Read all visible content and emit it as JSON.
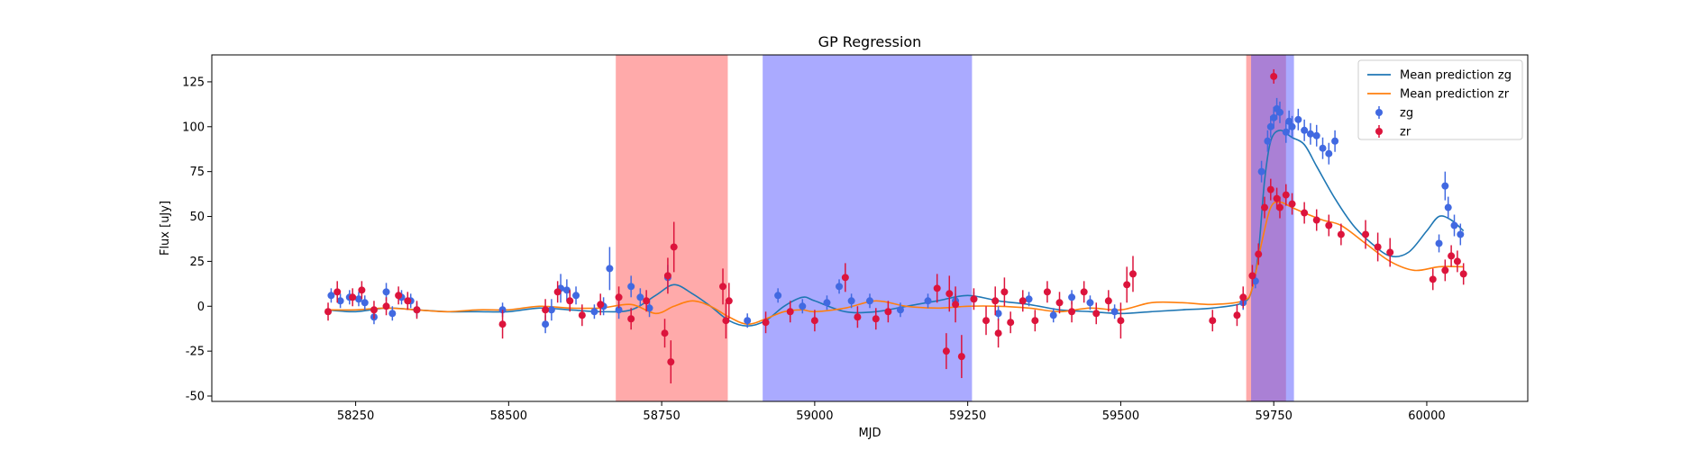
{
  "chart_data": {
    "type": "scatter",
    "title": "GP Regression",
    "xlabel": "MJD",
    "ylabel": "Flux [uJy]",
    "xlim": [
      58015,
      60165
    ],
    "ylim": [
      -53,
      140
    ],
    "xticks": [
      58250,
      58500,
      58750,
      59000,
      59250,
      59500,
      59750,
      60000
    ],
    "yticks": [
      -50,
      -25,
      0,
      25,
      50,
      75,
      100,
      125
    ],
    "legend_position": "top-right",
    "shaded_regions": [
      {
        "x0": 58675,
        "x1": 58858,
        "color": "#ff5555",
        "opacity": 0.5
      },
      {
        "x0": 58915,
        "x1": 59257,
        "color": "#5555ff",
        "opacity": 0.5
      },
      {
        "x0": 59705,
        "x1": 59770,
        "color": "#ff5555",
        "opacity": 0.5
      },
      {
        "x0": 59713,
        "x1": 59783,
        "color": "#5555ff",
        "opacity": 0.5
      }
    ],
    "series": [
      {
        "name": "Mean prediction zg",
        "kind": "line",
        "color": "#1f77b4",
        "x": [
          58200,
          58250,
          58300,
          58350,
          58400,
          58450,
          58500,
          58550,
          58600,
          58650,
          58700,
          58740,
          58770,
          58800,
          58830,
          58860,
          58890,
          58920,
          58950,
          58980,
          59000,
          59050,
          59100,
          59150,
          59200,
          59250,
          59300,
          59350,
          59400,
          59450,
          59500,
          59550,
          59600,
          59650,
          59700,
          59715,
          59725,
          59735,
          59745,
          59760,
          59780,
          59800,
          59820,
          59850,
          59880,
          59910,
          59940,
          59970,
          60000,
          60020,
          60040,
          60060
        ],
        "y": [
          -2,
          -3,
          -1,
          -2,
          -3,
          -3,
          -3,
          -1,
          -2,
          -3,
          -2,
          6,
          12,
          7,
          0,
          -8,
          -11,
          -8,
          0,
          5,
          3,
          -3,
          -3,
          0,
          3,
          6,
          3,
          1,
          -2,
          -3,
          -4,
          -3,
          -2,
          -1,
          2,
          10,
          30,
          70,
          92,
          98,
          94,
          90,
          78,
          60,
          45,
          35,
          28,
          30,
          42,
          50,
          48,
          42
        ]
      },
      {
        "name": "Mean prediction zr",
        "kind": "line",
        "color": "#ff7f0e",
        "x": [
          58200,
          58250,
          58300,
          58350,
          58400,
          58450,
          58500,
          58550,
          58600,
          58650,
          58700,
          58740,
          58770,
          58800,
          58830,
          58860,
          58890,
          58920,
          58950,
          58980,
          59000,
          59050,
          59100,
          59150,
          59200,
          59250,
          59300,
          59350,
          59400,
          59450,
          59500,
          59550,
          59600,
          59650,
          59700,
          59715,
          59730,
          59745,
          59760,
          59780,
          59800,
          59830,
          59860,
          59900,
          59940,
          59980,
          60020,
          60060
        ],
        "y": [
          -2,
          -2,
          -1,
          -2,
          -3,
          -2,
          -2,
          0,
          -1,
          -1,
          1,
          -4,
          0,
          3,
          0,
          -6,
          -10,
          -7,
          -3,
          -2,
          -3,
          -1,
          3,
          0,
          -1,
          0,
          0,
          -1,
          -3,
          -1,
          -2,
          2,
          2,
          1,
          3,
          10,
          35,
          55,
          58,
          55,
          52,
          48,
          45,
          35,
          25,
          20,
          22,
          22
        ]
      },
      {
        "name": "zg",
        "kind": "errorbar",
        "color": "#4169e1",
        "x": [
          58210,
          58225,
          58240,
          58255,
          58265,
          58280,
          58300,
          58310,
          58325,
          58340,
          58350,
          58490,
          58560,
          58570,
          58585,
          58595,
          58610,
          58640,
          58655,
          58665,
          58680,
          58700,
          58715,
          58730,
          58760,
          58890,
          58940,
          58980,
          59020,
          59040,
          59060,
          59090,
          59140,
          59185,
          59230,
          59260,
          59300,
          59350,
          59390,
          59420,
          59450,
          59490,
          59700,
          59720,
          59730,
          59740,
          59745,
          59750,
          59755,
          59760,
          59770,
          59775,
          59780,
          59790,
          59800,
          59810,
          59820,
          59830,
          59840,
          59850,
          60020,
          60030,
          60035,
          60045,
          60055
        ],
        "y": [
          6,
          3,
          5,
          4,
          2,
          -6,
          8,
          -4,
          5,
          3,
          -2,
          -2,
          -10,
          -2,
          10,
          9,
          6,
          -3,
          0,
          21,
          -2,
          11,
          5,
          -1,
          16,
          -8,
          6,
          0,
          2,
          11,
          3,
          3,
          -2,
          3,
          3,
          4,
          -4,
          4,
          -5,
          5,
          2,
          -3,
          2,
          14,
          75,
          92,
          100,
          105,
          110,
          108,
          97,
          103,
          100,
          104,
          98,
          96,
          95,
          88,
          85,
          92,
          35,
          67,
          55,
          45,
          40
        ],
        "err": [
          4,
          4,
          4,
          4,
          4,
          4,
          5,
          4,
          4,
          4,
          4,
          4,
          5,
          6,
          8,
          6,
          5,
          4,
          5,
          12,
          5,
          6,
          5,
          5,
          7,
          4,
          4,
          4,
          4,
          4,
          4,
          4,
          4,
          4,
          4,
          4,
          4,
          4,
          4,
          4,
          4,
          4,
          4,
          4,
          6,
          6,
          6,
          6,
          6,
          6,
          6,
          6,
          6,
          6,
          6,
          6,
          6,
          6,
          6,
          6,
          5,
          8,
          6,
          6,
          6
        ]
      },
      {
        "name": "zr",
        "kind": "errorbar",
        "color": "#dc143c",
        "x": [
          58205,
          58220,
          58245,
          58260,
          58280,
          58300,
          58320,
          58335,
          58350,
          58490,
          58560,
          58580,
          58600,
          58620,
          58650,
          58680,
          58700,
          58725,
          58755,
          58760,
          58765,
          58770,
          58850,
          58855,
          58860,
          58920,
          58960,
          59000,
          59050,
          59070,
          59100,
          59120,
          59200,
          59215,
          59220,
          59230,
          59240,
          59260,
          59280,
          59295,
          59300,
          59310,
          59320,
          59340,
          59360,
          59380,
          59400,
          59420,
          59440,
          59460,
          59480,
          59500,
          59510,
          59520,
          59650,
          59690,
          59700,
          59715,
          59725,
          59735,
          59745,
          59750,
          59755,
          59760,
          59770,
          59780,
          59800,
          59820,
          59840,
          59860,
          59900,
          59920,
          59940,
          60010,
          60030,
          60040,
          60050,
          60060
        ],
        "y": [
          -3,
          8,
          5,
          9,
          -2,
          0,
          6,
          3,
          -2,
          -10,
          -2,
          8,
          3,
          -5,
          1,
          5,
          -7,
          3,
          -15,
          17,
          -31,
          33,
          11,
          -8,
          3,
          -9,
          -3,
          -8,
          16,
          -6,
          -7,
          -3,
          10,
          -25,
          7,
          1,
          -28,
          4,
          -8,
          3,
          -15,
          8,
          -9,
          3,
          -8,
          8,
          2,
          -3,
          8,
          -4,
          3,
          -8,
          12,
          18,
          -8,
          -5,
          5,
          17,
          29,
          55,
          65,
          128,
          60,
          55,
          62,
          57,
          52,
          48,
          45,
          40,
          40,
          33,
          30,
          15,
          20,
          28,
          25,
          18
        ],
        "err": [
          5,
          6,
          5,
          5,
          5,
          5,
          5,
          5,
          5,
          8,
          6,
          6,
          6,
          6,
          6,
          6,
          6,
          6,
          8,
          10,
          12,
          14,
          10,
          10,
          10,
          6,
          6,
          6,
          8,
          6,
          6,
          6,
          8,
          10,
          10,
          10,
          12,
          6,
          8,
          8,
          8,
          8,
          6,
          6,
          6,
          6,
          6,
          6,
          6,
          6,
          6,
          10,
          10,
          10,
          6,
          6,
          6,
          6,
          6,
          6,
          6,
          4,
          6,
          6,
          6,
          6,
          6,
          6,
          6,
          6,
          8,
          8,
          8,
          6,
          6,
          6,
          6,
          6
        ]
      }
    ]
  }
}
